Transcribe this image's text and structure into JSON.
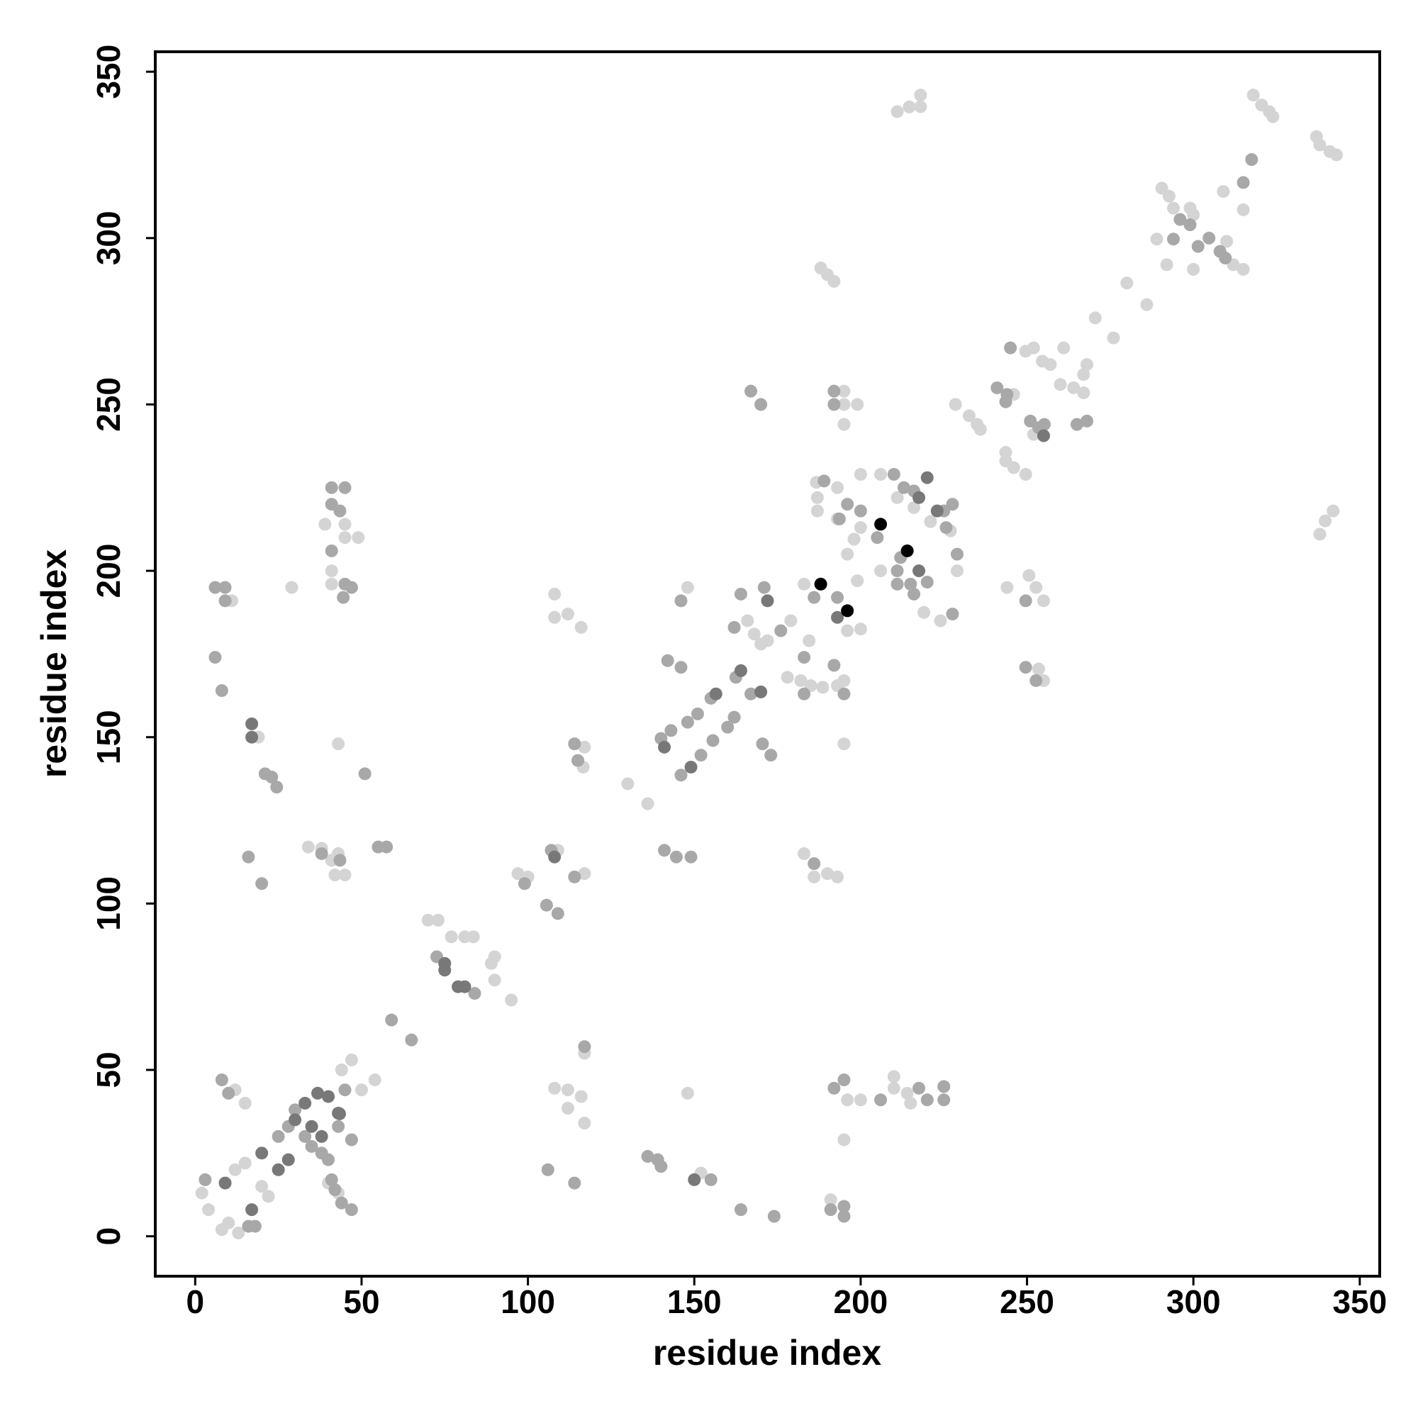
{
  "chart_data": {
    "type": "scatter",
    "x_label": "residue index",
    "y_label": "residue index",
    "xlim": [
      -12,
      356
    ],
    "ylim": [
      -12,
      356
    ],
    "xticks": [
      0,
      50,
      100,
      150,
      200,
      250,
      300,
      350
    ],
    "yticks": [
      0,
      50,
      100,
      150,
      200,
      250,
      300,
      350
    ],
    "series": [
      {
        "color": "#d4d4d4",
        "x": [
          2,
          4,
          8,
          13,
          10,
          12,
          15,
          20,
          22,
          12,
          15,
          44,
          47,
          50,
          54,
          40,
          43,
          70,
          73,
          77,
          81,
          83.6,
          89,
          90,
          90,
          95,
          97,
          100,
          109,
          117,
          108,
          108,
          112,
          116,
          116.6,
          117,
          117,
          108,
          112,
          116,
          117,
          112,
          130,
          136,
          139,
          152,
          148,
          148,
          166,
          168,
          170,
          172,
          179,
          178,
          182,
          185,
          188.6,
          193,
          195,
          184.5,
          183,
          196,
          200,
          195,
          186.7,
          187,
          187,
          193,
          193,
          200,
          198,
          196,
          200,
          206,
          199,
          206,
          211,
          216,
          219,
          224,
          221,
          227,
          229,
          228.5,
          232.6,
          235,
          236,
          246,
          243.6,
          243.6,
          246,
          249.6,
          249.6,
          252,
          254.6,
          257,
          261,
          252,
          260,
          264,
          267,
          267,
          268,
          244,
          250.6,
          252.7,
          255,
          255,
          253.5,
          270.5,
          276,
          280,
          286,
          289,
          290.5,
          292.7,
          294,
          299,
          300,
          292,
          300,
          310,
          309,
          315,
          312,
          315,
          318,
          320.5,
          322.8,
          323.9,
          337,
          338,
          341,
          343,
          338,
          339.6,
          342,
          211,
          214.6,
          218,
          218,
          188,
          190,
          192,
          29,
          11,
          19,
          34,
          38,
          41,
          43,
          39,
          45,
          45,
          49,
          41,
          41,
          42,
          45,
          43,
          183,
          186,
          190,
          193,
          191,
          195,
          196,
          200,
          210,
          210,
          214,
          215,
          195,
          195,
          199,
          195
        ],
        "values": [
          13,
          8,
          2,
          1,
          4,
          20,
          22,
          15,
          12,
          44,
          40,
          50,
          53,
          44,
          47,
          16,
          13,
          95,
          95,
          90,
          90,
          90,
          82,
          84,
          77,
          71,
          109,
          108,
          116,
          109,
          193,
          186,
          187,
          183,
          141,
          147,
          55,
          44.5,
          44,
          42,
          34,
          38.5,
          136,
          130,
          23,
          19,
          43,
          195,
          185,
          181,
          178,
          179,
          185,
          168,
          167,
          165.5,
          165,
          165.5,
          167,
          179,
          196,
          182,
          182.5,
          148,
          226.6,
          222,
          218,
          225,
          215.6,
          213,
          209.5,
          205,
          229,
          229,
          197,
          200,
          222,
          219,
          187.5,
          185,
          214.8,
          212,
          200,
          250,
          246.6,
          244,
          242.5,
          253,
          235.6,
          233,
          231,
          229,
          266,
          267,
          263,
          262,
          267,
          241,
          256,
          255,
          253.5,
          259,
          262,
          195,
          198.6,
          195,
          191,
          167,
          170.5,
          276,
          270,
          286.5,
          280,
          299.7,
          315,
          312.6,
          309,
          309,
          307,
          292,
          290.6,
          299,
          314,
          308.5,
          292,
          290.6,
          343,
          340,
          338,
          336.5,
          330.5,
          328,
          326,
          325,
          211,
          215,
          218,
          338,
          339.4,
          343,
          339.5,
          291,
          289,
          287,
          195,
          191,
          150,
          117,
          116.6,
          113,
          115,
          214,
          214,
          210,
          210,
          200,
          196,
          108.6,
          108.6,
          148,
          115,
          108,
          109,
          108,
          11,
          29,
          41,
          41,
          48,
          44.5,
          43,
          40,
          254,
          250,
          250,
          244
        ]
      },
      {
        "color": "#a8a8a8",
        "x": [
          3,
          8,
          10,
          16,
          18,
          25,
          28,
          30,
          33,
          35,
          38,
          40,
          41,
          42,
          44,
          47,
          47,
          45,
          43,
          59,
          65,
          72.6,
          84,
          99,
          105.6,
          109,
          107,
          114,
          114,
          115,
          117,
          106,
          114,
          136,
          140,
          139,
          155,
          164,
          174,
          191,
          195,
          195,
          192,
          195,
          206,
          217.5,
          220,
          225,
          225,
          6,
          9,
          9,
          6,
          8,
          21,
          23,
          24.5,
          16,
          20,
          41,
          45,
          41,
          43.5,
          41,
          45,
          47,
          44.5,
          51,
          38,
          43.5,
          55,
          57.5,
          140,
          143,
          148,
          151,
          155,
          162.5,
          146,
          152,
          155.6,
          160,
          162,
          167,
          142,
          146,
          141,
          144.6,
          149,
          146,
          162,
          164,
          171,
          176,
          183,
          183,
          186,
          193,
          192,
          195,
          170.5,
          173,
          167,
          170,
          186,
          189,
          196,
          200,
          193.6,
          205,
          212,
          211,
          211,
          215,
          216,
          220,
          227.6,
          225,
          227.6,
          229,
          225.7,
          210,
          213,
          216,
          241,
          244,
          243.6,
          245,
          251,
          253.5,
          255.2,
          265,
          268,
          249.6,
          249.6,
          252.7,
          294,
          296,
          299,
          304.7,
          308,
          301.4,
          309.6,
          315,
          317.5,
          192,
          192
        ],
        "values": [
          17,
          47,
          43,
          3,
          3,
          30,
          33,
          38,
          30,
          27,
          25,
          23,
          17,
          14,
          10,
          8,
          29,
          44,
          33,
          65,
          59,
          84,
          73,
          106,
          99.5,
          97,
          116,
          108,
          148,
          143,
          57,
          20,
          16,
          24,
          21,
          23,
          17,
          8,
          6,
          8,
          9,
          6,
          44.5,
          47,
          41,
          44.5,
          41,
          45,
          41,
          195,
          195,
          191,
          174,
          164,
          139,
          138,
          135,
          114,
          106,
          225,
          225,
          220,
          218,
          206,
          196,
          195,
          192,
          139,
          115,
          113,
          117,
          117,
          149.6,
          152,
          154.5,
          157,
          161.7,
          168,
          138.6,
          144.6,
          149,
          153,
          156,
          163,
          173,
          171,
          116,
          114,
          114,
          191,
          183,
          193,
          195,
          182,
          163,
          174,
          192,
          192,
          171.6,
          163,
          148,
          144.6,
          254,
          250,
          112,
          227,
          220,
          218,
          215.6,
          210,
          204,
          200,
          196,
          196,
          193,
          196.6,
          187,
          218,
          220,
          205,
          213,
          229,
          225,
          224,
          255,
          253,
          250.8,
          267,
          245,
          243,
          244,
          244,
          245,
          191,
          171,
          167,
          299.7,
          305.6,
          304,
          300,
          296,
          297.5,
          294,
          316.7,
          323.6,
          254,
          250
        ]
      },
      {
        "color": "#787878",
        "x": [
          9,
          17,
          20,
          25,
          30,
          33,
          36.8,
          43.4,
          38,
          43,
          40,
          35,
          28,
          75,
          75,
          79,
          81,
          108,
          17,
          17,
          150,
          141,
          156.5,
          164,
          149,
          170,
          172,
          193,
          217.5,
          220,
          217.5,
          223,
          255
        ],
        "values": [
          16,
          8,
          25,
          20,
          35,
          40,
          43,
          36.8,
          30,
          37,
          42,
          33,
          23,
          82,
          80,
          75,
          75,
          114,
          154,
          150,
          17,
          147,
          163,
          170,
          141,
          163.6,
          191,
          186,
          222,
          228,
          200,
          218,
          240.6
        ]
      },
      {
        "color": "#000000",
        "x": [
          188,
          196,
          206,
          214
        ],
        "values": [
          196,
          188,
          214,
          206
        ]
      }
    ]
  }
}
